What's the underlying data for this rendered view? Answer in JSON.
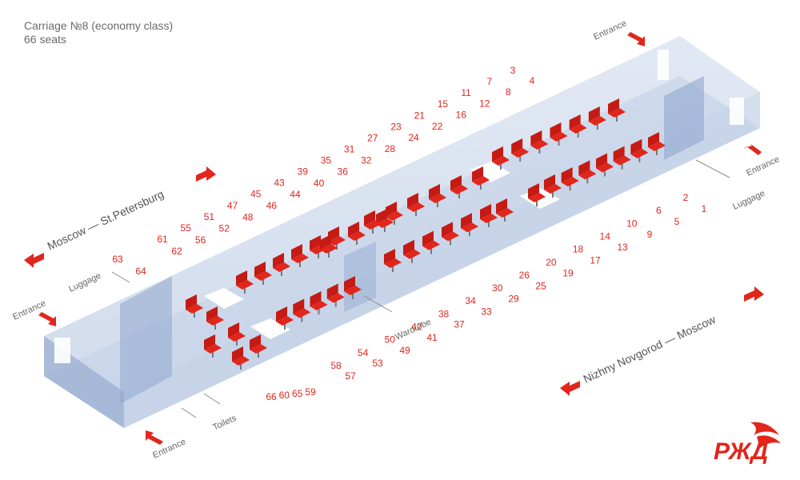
{
  "header": {
    "title": "Carriage №8 (economy class)",
    "subtitle": "66 seats"
  },
  "labels": {
    "entrance": "Entrance",
    "luggage": "Luggage",
    "toilets": "Toilets",
    "wardrobe": "Wardrobe"
  },
  "routes": {
    "moscow_stpetersburg": "Moscow — St.Petersburg",
    "nizhny_moscow": "Nizhny Novgorod — Moscow"
  },
  "seats": {
    "back_row_upper": [
      "61",
      "55",
      "51",
      "47",
      "45",
      "43",
      "39",
      "35",
      "31",
      "27",
      "23",
      "21",
      "15",
      "11",
      "7",
      "3"
    ],
    "back_row_lower": [
      "62",
      "56",
      "52",
      "48",
      "46",
      "44",
      "40",
      "36",
      "32",
      "28",
      "24",
      "22",
      "16",
      "12",
      "8",
      "4"
    ],
    "front_row_upper": [
      "58",
      "54",
      "50",
      "42",
      "38",
      "34",
      "30",
      "26",
      "20",
      "18",
      "14",
      "10",
      "6",
      "2"
    ],
    "front_row_lower": [
      "57",
      "53",
      "49",
      "41",
      "37",
      "33",
      "29",
      "25",
      "19",
      "17",
      "13",
      "9",
      "5",
      "1"
    ],
    "side_left_upper": [
      "63",
      "64"
    ],
    "side_left_lower": [
      "66",
      "60",
      "65",
      "59"
    ]
  },
  "colors": {
    "seat_red": "#e1261c",
    "carriage_blue": "#9fb4d6",
    "brand_red": "#e1261c"
  },
  "logo": {
    "icon": "rzd-logo-icon"
  }
}
